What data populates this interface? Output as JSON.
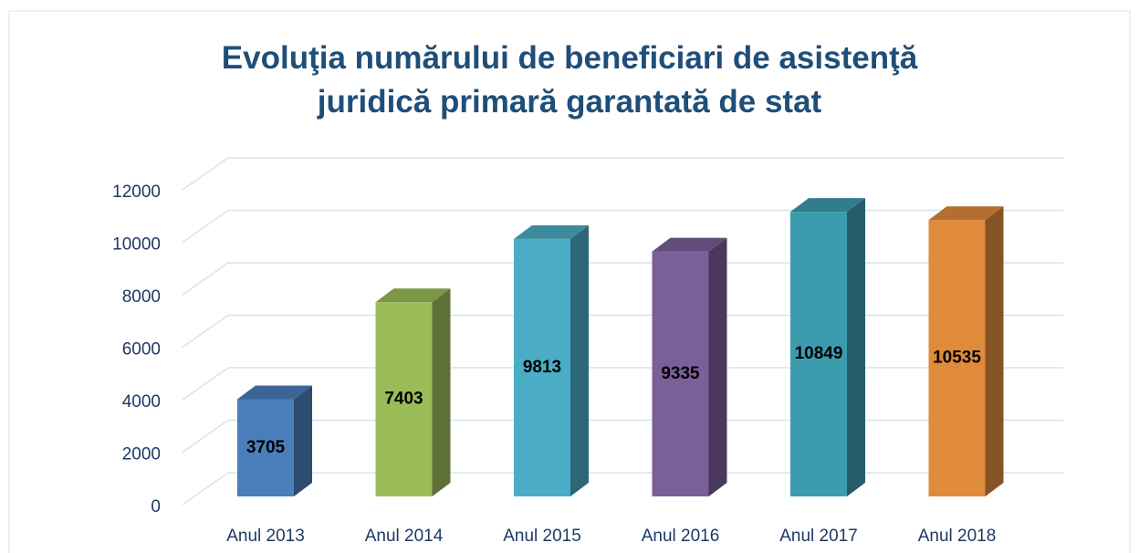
{
  "chart_data": {
    "type": "bar3d",
    "title": "Evoluţia numărului de beneficiari de asistenţă juridică primară garantată de stat",
    "categories": [
      "Anul 2013",
      "Anul 2014",
      "Anul 2015",
      "Anul 2016",
      "Anul 2017",
      "Anul 2018"
    ],
    "values": [
      3705,
      7403,
      9813,
      9335,
      10849,
      10535
    ],
    "colors": [
      "#4a7ebb",
      "#9bbb59",
      "#4bacc6",
      "#7b5f99",
      "#3d9bb0",
      "#e08a3c"
    ],
    "ylim": [
      0,
      12000
    ],
    "yticks": [
      0,
      2000,
      4000,
      6000,
      8000,
      10000,
      12000
    ],
    "grid": true
  }
}
